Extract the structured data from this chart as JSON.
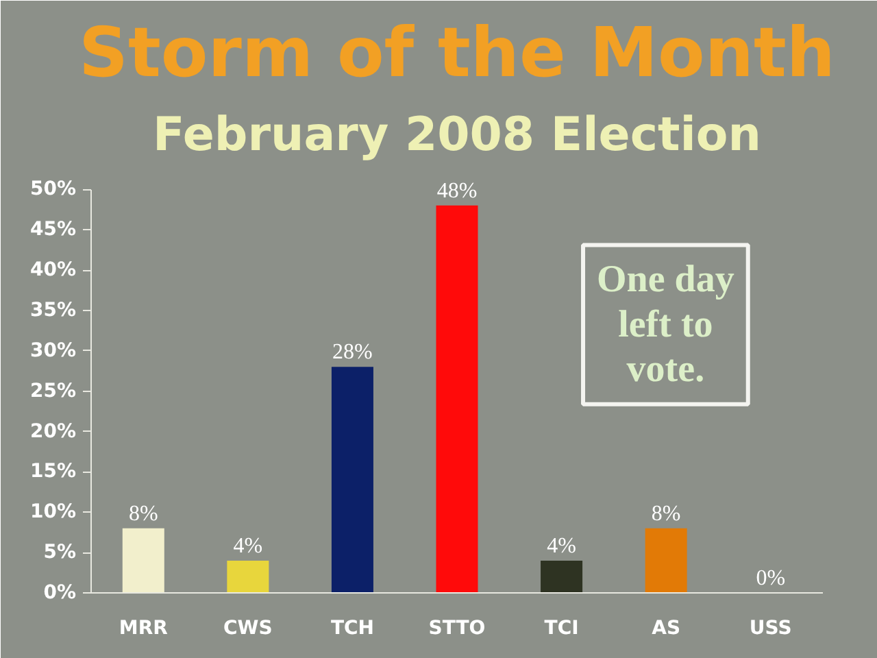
{
  "chart_data": {
    "type": "bar",
    "title": "Storm of the Month",
    "subtitle": "February 2008 Election",
    "categories": [
      "MRR",
      "CWS",
      "TCH",
      "STTO",
      "TCI",
      "AS",
      "USS"
    ],
    "values": [
      8,
      4,
      28,
      48,
      4,
      8,
      0
    ],
    "colors": [
      "#f2efcc",
      "#e8d63c",
      "#0c2068",
      "#ff0a0a",
      "#2e3322",
      "#e27a06",
      "#8e9cb4"
    ],
    "value_labels": [
      "8%",
      "4%",
      "28%",
      "48%",
      "4%",
      "8%",
      "0%"
    ],
    "ylim": [
      0,
      50
    ],
    "yticks": [
      {
        "value": 0,
        "label": "0%"
      },
      {
        "value": 5,
        "label": "5%"
      },
      {
        "value": 10,
        "label": "10%"
      },
      {
        "value": 15,
        "label": "15%"
      },
      {
        "value": 20,
        "label": "20%"
      },
      {
        "value": 25,
        "label": "25%"
      },
      {
        "value": 30,
        "label": "30%"
      },
      {
        "value": 35,
        "label": "35%"
      },
      {
        "value": 40,
        "label": "40%"
      },
      {
        "value": 45,
        "label": "45%"
      },
      {
        "value": 50,
        "label": "50%"
      }
    ],
    "annotations": [
      "One day left to vote."
    ]
  }
}
